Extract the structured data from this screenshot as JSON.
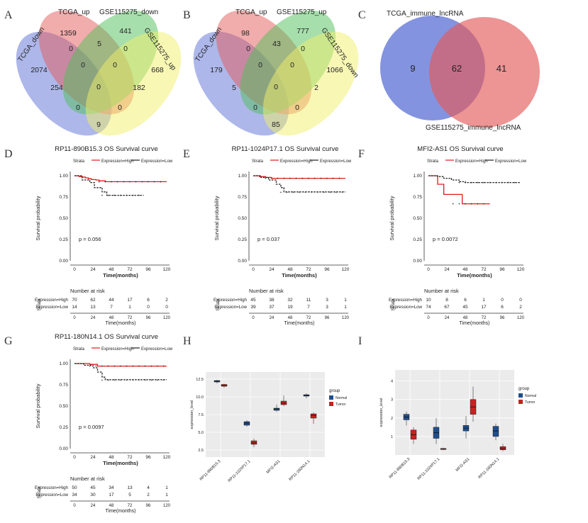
{
  "panels": {
    "A": "A",
    "B": "B",
    "C": "C",
    "D": "D",
    "E": "E",
    "F": "F",
    "G": "G",
    "H": "H",
    "I": "I"
  },
  "chart_data": [
    {
      "panel": "A",
      "type": "venn4",
      "sets": [
        "TCGA_down",
        "TCGA_up",
        "GSE115275_down",
        "GSE115275_up"
      ],
      "regions": [
        "1359",
        "441",
        "0",
        "5",
        "0",
        "2074",
        "0",
        "0",
        "668",
        "254",
        "0",
        "182",
        "0",
        "0",
        "9"
      ]
    },
    {
      "panel": "B",
      "type": "venn4",
      "sets": [
        "TCGA_down",
        "TCGA_up",
        "GSE115275_up",
        "GSE115275_down"
      ],
      "regions": [
        "98",
        "777",
        "0",
        "43",
        "0",
        "179",
        "0",
        "0",
        "1066",
        "5",
        "0",
        "2",
        "0",
        "0",
        "85"
      ]
    },
    {
      "panel": "C",
      "type": "venn2",
      "sets": [
        "TCGA_immune_lncRNA",
        "GSE115275_immune_lncRNA"
      ],
      "values": [
        "9",
        "62",
        "41"
      ]
    },
    {
      "panel": "D",
      "type": "line",
      "title": "RP11-890B15.3 OS Survival curve",
      "legend_title": "Strata",
      "legend": [
        "Expression=High",
        "Expression=Low"
      ],
      "xlabel": "Time(months)",
      "ylabel": "Survival probability",
      "pvalue": "p = 0.056",
      "xticks": [
        "0",
        "24",
        "48",
        "72",
        "96",
        "120"
      ],
      "yticks": [
        "0.00",
        "0.25",
        "0.50",
        "0.75",
        "1.00"
      ],
      "series": [
        {
          "name": "Expression=High",
          "color": "#e41a1c",
          "x": [
            0,
            6,
            10,
            14,
            18,
            22,
            28,
            32,
            40,
            120
          ],
          "y": [
            1.0,
            0.99,
            0.985,
            0.975,
            0.965,
            0.955,
            0.95,
            0.94,
            0.93,
            0.93
          ]
        },
        {
          "name": "Expression=Low",
          "color": "#222222",
          "x": [
            0,
            10,
            20,
            26,
            36,
            42,
            90
          ],
          "y": [
            1.0,
            0.95,
            0.92,
            0.86,
            0.81,
            0.77,
            0.77
          ]
        }
      ],
      "risk_title": "Number at risk",
      "risk_rows": [
        "Expression=High",
        "Expression=Low"
      ],
      "risk_values": [
        [
          "70",
          "62",
          "44",
          "17",
          "6",
          "2"
        ],
        [
          "14",
          "13",
          "7",
          "1",
          "0",
          "0"
        ]
      ],
      "risk_axis_label": "Strata"
    },
    {
      "panel": "E",
      "type": "line",
      "title": "RP11-1024P17.1 OS Survival curve",
      "legend_title": "Strata",
      "legend": [
        "Expression=High",
        "Expression=Low"
      ],
      "xlabel": "Time(months)",
      "ylabel": "Survival probability",
      "pvalue": "p = 0.037",
      "xticks": [
        "0",
        "24",
        "48",
        "72",
        "96",
        "120"
      ],
      "yticks": [
        "0.00",
        "0.25",
        "0.50",
        "0.75",
        "1.00"
      ],
      "series": [
        {
          "name": "Expression=High",
          "color": "#e41a1c",
          "x": [
            0,
            8,
            16,
            24,
            120
          ],
          "y": [
            1.0,
            0.99,
            0.98,
            0.97,
            0.97
          ]
        },
        {
          "name": "Expression=Low",
          "color": "#222222",
          "x": [
            0,
            10,
            20,
            30,
            36,
            40,
            120
          ],
          "y": [
            1.0,
            0.98,
            0.95,
            0.9,
            0.86,
            0.81,
            0.81
          ]
        }
      ],
      "risk_title": "Number at risk",
      "risk_rows": [
        "Expression=High",
        "Expression=Low"
      ],
      "risk_values": [
        [
          "45",
          "38",
          "32",
          "11",
          "3",
          "1"
        ],
        [
          "39",
          "37",
          "19",
          "7",
          "3",
          "1"
        ]
      ],
      "risk_axis_label": "Strata"
    },
    {
      "panel": "F",
      "type": "line",
      "title": "MFI2-AS1 OS Survival curve",
      "legend_title": "Strata",
      "legend": [
        "Expression=High",
        "Expression=Low"
      ],
      "xlabel": "Time(months)",
      "ylabel": "Survival probability",
      "pvalue": "p = 0.0072",
      "xticks": [
        "0",
        "24",
        "48",
        "72",
        "96",
        "120"
      ],
      "yticks": [
        "0.00",
        "0.25",
        "0.50",
        "0.75",
        "1.00"
      ],
      "series": [
        {
          "name": "Expression=High",
          "color": "#e41a1c",
          "x": [
            0,
            12,
            20,
            32,
            44,
            80
          ],
          "y": [
            1.0,
            0.9,
            0.78,
            0.78,
            0.67,
            0.67
          ]
        },
        {
          "name": "Expression=Low",
          "color": "#222222",
          "x": [
            0,
            12,
            20,
            30,
            40,
            48,
            120
          ],
          "y": [
            1.0,
            0.99,
            0.97,
            0.95,
            0.93,
            0.92,
            0.92
          ]
        }
      ],
      "risk_title": "Number at risk",
      "risk_rows": [
        "Expression=High",
        "Expression=Low"
      ],
      "risk_values": [
        [
          "10",
          "8",
          "6",
          "1",
          "0",
          "0"
        ],
        [
          "74",
          "67",
          "45",
          "17",
          "6",
          "2"
        ]
      ],
      "risk_axis_label": "Strata"
    },
    {
      "panel": "G",
      "type": "line",
      "title": "RP11-180N14.1 OS Survival curve",
      "legend_title": "Strata",
      "legend": [
        "Expression=High",
        "Expression=Low"
      ],
      "xlabel": "Time(months)",
      "ylabel": "Survival probability",
      "pvalue": "p = 0.0097",
      "xticks": [
        "0",
        "24",
        "48",
        "72",
        "96",
        "120"
      ],
      "yticks": [
        "0.00",
        "0.25",
        "0.50",
        "0.75",
        "1.00"
      ],
      "series": [
        {
          "name": "Expression=High",
          "color": "#e41a1c",
          "x": [
            0,
            20,
            30,
            120
          ],
          "y": [
            1.0,
            0.99,
            0.97,
            0.97
          ]
        },
        {
          "name": "Expression=Low",
          "color": "#222222",
          "x": [
            0,
            12,
            24,
            30,
            36,
            40,
            120
          ],
          "y": [
            1.0,
            0.98,
            0.95,
            0.9,
            0.84,
            0.81,
            0.81
          ]
        }
      ],
      "risk_title": "Number at risk",
      "risk_rows": [
        "Expression=High",
        "Expression=Low"
      ],
      "risk_values": [
        [
          "50",
          "45",
          "34",
          "13",
          "4",
          "1"
        ],
        [
          "34",
          "30",
          "17",
          "5",
          "2",
          "1"
        ]
      ],
      "risk_axis_label": "Strata"
    },
    {
      "panel": "H",
      "type": "box",
      "ylabel": "expression_level",
      "legend_title": "group",
      "legend": [
        "Normal",
        "Tumor"
      ],
      "colors": {
        "Normal": "#1f4e8c",
        "Tumor": "#cc1f1f"
      },
      "categories": [
        "RP11-890B15.3",
        "RP11-1024P17.1",
        "MFI2-AS1",
        "RP11-180N14.1"
      ],
      "yticks": [
        "2.5",
        "5.0",
        "7.5",
        "10.0",
        "12.5"
      ],
      "ylim": [
        1.5,
        13.5
      ],
      "series": [
        {
          "name": "Normal",
          "box": [
            [
              11.9,
              12.1,
              12.2,
              12.3,
              12.4
            ],
            [
              5.8,
              6.0,
              6.3,
              6.5,
              6.7
            ],
            [
              7.9,
              8.1,
              8.3,
              8.4,
              8.9
            ],
            [
              9.8,
              10.1,
              10.2,
              10.3,
              10.5
            ]
          ]
        },
        {
          "name": "Tumor",
          "box": [
            [
              11.3,
              11.5,
              11.6,
              11.75,
              11.85
            ],
            [
              2.9,
              3.3,
              3.5,
              3.8,
              4.1
            ],
            [
              8.7,
              8.9,
              9.1,
              9.4,
              10.2
            ],
            [
              6.2,
              7.0,
              7.4,
              7.6,
              7.8
            ]
          ]
        }
      ]
    },
    {
      "panel": "I",
      "type": "box",
      "ylabel": "expression_level",
      "legend_title": "group",
      "legend": [
        "Normal",
        "Tumor"
      ],
      "colors": {
        "Normal": "#1f4e8c",
        "Tumor": "#cc1f1f"
      },
      "categories": [
        "RP11-890B15.3",
        "RP11-1024P17.1",
        "MFI2-AS1",
        "RP11-180N14.1"
      ],
      "yticks": [
        "1",
        "2",
        "3",
        "4"
      ],
      "ylim": [
        0,
        4.6
      ],
      "series": [
        {
          "name": "Normal",
          "box": [
            [
              1.6,
              1.9,
              2.05,
              2.2,
              2.35
            ],
            [
              0.6,
              0.9,
              1.2,
              1.5,
              2.0
            ],
            [
              0.9,
              1.3,
              1.45,
              1.6,
              2.1
            ],
            [
              0.8,
              1.0,
              1.3,
              1.55,
              1.7
            ]
          ]
        },
        {
          "name": "Tumor",
          "box": [
            [
              0.6,
              0.85,
              1.1,
              1.35,
              1.5
            ],
            [
              0.25,
              0.3,
              0.32,
              0.35,
              0.4
            ],
            [
              1.8,
              2.2,
              2.6,
              3.0,
              3.7
            ],
            [
              0.2,
              0.28,
              0.35,
              0.45,
              0.6
            ]
          ]
        }
      ]
    }
  ]
}
